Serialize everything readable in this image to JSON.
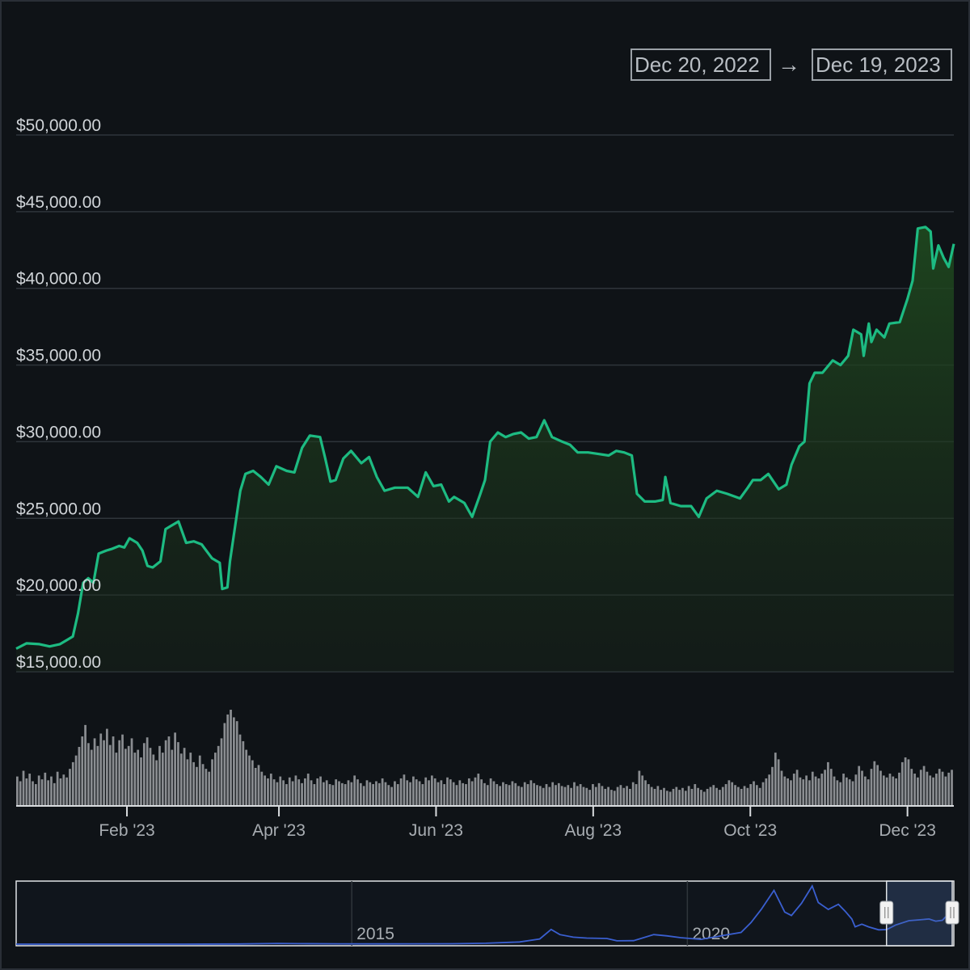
{
  "range_selector": {
    "start_date": "Dec 20, 2022",
    "arrow": "→",
    "end_date": "Dec 19, 2023"
  },
  "colors": {
    "background": "#0f1317",
    "price_line": "#1dbb82",
    "area_fill": "#1f3a1c",
    "volume_bar": "#8a8d91",
    "gridline": "#2f353b",
    "navigator_line": "#3a5fd0",
    "axis_label": "#d0d4d8"
  },
  "chart_data": [
    {
      "type": "area",
      "ylim": [
        15000,
        50000
      ],
      "y_ticks": [
        "$15,000.00",
        "$20,000.00",
        "$25,000.00",
        "$30,000.00",
        "$35,000.00",
        "$40,000.00",
        "$45,000.00",
        "$50,000.00"
      ],
      "y_tick_values": [
        15000,
        20000,
        25000,
        30000,
        35000,
        40000,
        45000,
        50000
      ],
      "x_ticks": [
        "Feb '23",
        "Apr '23",
        "Jun '23",
        "Aug '23",
        "Oct '23",
        "Dec '23"
      ],
      "x_tick_dates": [
        "2023-02-01",
        "2023-04-01",
        "2023-06-01",
        "2023-08-01",
        "2023-10-01",
        "2023-12-01"
      ],
      "x_range": [
        "2022-12-20",
        "2023-12-19"
      ],
      "grid": true,
      "series": [
        {
          "values": [
            [
              "2022-12-20",
              16500
            ],
            [
              "2022-12-24",
              16850
            ],
            [
              "2022-12-29",
              16800
            ],
            [
              "2023-01-02",
              16650
            ],
            [
              "2023-01-06",
              16800
            ],
            [
              "2023-01-09",
              17100
            ],
            [
              "2023-01-11",
              17300
            ],
            [
              "2023-01-13",
              18800
            ],
            [
              "2023-01-15",
              20800
            ],
            [
              "2023-01-17",
              21100
            ],
            [
              "2023-01-19",
              20800
            ],
            [
              "2023-01-21",
              22700
            ],
            [
              "2023-01-24",
              22900
            ],
            [
              "2023-01-26",
              23000
            ],
            [
              "2023-01-29",
              23200
            ],
            [
              "2023-01-31",
              23100
            ],
            [
              "2023-02-02",
              23700
            ],
            [
              "2023-02-05",
              23400
            ],
            [
              "2023-02-07",
              22900
            ],
            [
              "2023-02-09",
              21900
            ],
            [
              "2023-02-11",
              21800
            ],
            [
              "2023-02-14",
              22200
            ],
            [
              "2023-02-16",
              24300
            ],
            [
              "2023-02-18",
              24500
            ],
            [
              "2023-02-21",
              24800
            ],
            [
              "2023-02-24",
              23400
            ],
            [
              "2023-02-27",
              23500
            ],
            [
              "2023-03-02",
              23300
            ],
            [
              "2023-03-06",
              22400
            ],
            [
              "2023-03-09",
              22100
            ],
            [
              "2023-03-10",
              20400
            ],
            [
              "2023-03-12",
              20500
            ],
            [
              "2023-03-13",
              22200
            ],
            [
              "2023-03-15",
              24500
            ],
            [
              "2023-03-17",
              26800
            ],
            [
              "2023-03-19",
              27900
            ],
            [
              "2023-03-22",
              28100
            ],
            [
              "2023-03-25",
              27700
            ],
            [
              "2023-03-28",
              27200
            ],
            [
              "2023-03-31",
              28400
            ],
            [
              "2023-04-04",
              28100
            ],
            [
              "2023-04-07",
              28000
            ],
            [
              "2023-04-10",
              29600
            ],
            [
              "2023-04-13",
              30400
            ],
            [
              "2023-04-17",
              30300
            ],
            [
              "2023-04-19",
              28900
            ],
            [
              "2023-04-21",
              27400
            ],
            [
              "2023-04-23",
              27500
            ],
            [
              "2023-04-26",
              28900
            ],
            [
              "2023-04-29",
              29400
            ],
            [
              "2023-05-03",
              28600
            ],
            [
              "2023-05-06",
              29000
            ],
            [
              "2023-05-09",
              27700
            ],
            [
              "2023-05-12",
              26800
            ],
            [
              "2023-05-16",
              27000
            ],
            [
              "2023-05-21",
              27000
            ],
            [
              "2023-05-25",
              26400
            ],
            [
              "2023-05-28",
              28000
            ],
            [
              "2023-05-31",
              27100
            ],
            [
              "2023-06-03",
              27200
            ],
            [
              "2023-06-06",
              26100
            ],
            [
              "2023-06-08",
              26400
            ],
            [
              "2023-06-12",
              26000
            ],
            [
              "2023-06-15",
              25100
            ],
            [
              "2023-06-18",
              26500
            ],
            [
              "2023-06-20",
              27500
            ],
            [
              "2023-06-22",
              30000
            ],
            [
              "2023-06-25",
              30600
            ],
            [
              "2023-06-28",
              30300
            ],
            [
              "2023-07-01",
              30500
            ],
            [
              "2023-07-04",
              30600
            ],
            [
              "2023-07-07",
              30200
            ],
            [
              "2023-07-10",
              30300
            ],
            [
              "2023-07-13",
              31400
            ],
            [
              "2023-07-16",
              30300
            ],
            [
              "2023-07-20",
              30000
            ],
            [
              "2023-07-23",
              29800
            ],
            [
              "2023-07-26",
              29300
            ],
            [
              "2023-07-30",
              29300
            ],
            [
              "2023-08-03",
              29200
            ],
            [
              "2023-08-07",
              29100
            ],
            [
              "2023-08-10",
              29400
            ],
            [
              "2023-08-13",
              29300
            ],
            [
              "2023-08-16",
              29100
            ],
            [
              "2023-08-18",
              26600
            ],
            [
              "2023-08-21",
              26100
            ],
            [
              "2023-08-25",
              26100
            ],
            [
              "2023-08-28",
              26200
            ],
            [
              "2023-08-29",
              27700
            ],
            [
              "2023-08-31",
              26000
            ],
            [
              "2023-09-04",
              25800
            ],
            [
              "2023-09-08",
              25800
            ],
            [
              "2023-09-11",
              25100
            ],
            [
              "2023-09-14",
              26300
            ],
            [
              "2023-09-18",
              26800
            ],
            [
              "2023-09-22",
              26600
            ],
            [
              "2023-09-27",
              26300
            ],
            [
              "2023-09-30",
              27000
            ],
            [
              "2023-10-02",
              27500
            ],
            [
              "2023-10-05",
              27500
            ],
            [
              "2023-10-08",
              27900
            ],
            [
              "2023-10-12",
              26900
            ],
            [
              "2023-10-15",
              27200
            ],
            [
              "2023-10-17",
              28500
            ],
            [
              "2023-10-20",
              29700
            ],
            [
              "2023-10-22",
              30000
            ],
            [
              "2023-10-24",
              33800
            ],
            [
              "2023-10-26",
              34500
            ],
            [
              "2023-10-29",
              34500
            ],
            [
              "2023-11-02",
              35300
            ],
            [
              "2023-11-05",
              35000
            ],
            [
              "2023-11-08",
              35600
            ],
            [
              "2023-11-10",
              37300
            ],
            [
              "2023-11-13",
              37000
            ],
            [
              "2023-11-14",
              35600
            ],
            [
              "2023-11-16",
              37700
            ],
            [
              "2023-11-17",
              36500
            ],
            [
              "2023-11-19",
              37300
            ],
            [
              "2023-11-22",
              36800
            ],
            [
              "2023-11-24",
              37700
            ],
            [
              "2023-11-28",
              37800
            ],
            [
              "2023-12-01",
              39300
            ],
            [
              "2023-12-03",
              40500
            ],
            [
              "2023-12-05",
              43900
            ],
            [
              "2023-12-08",
              44000
            ],
            [
              "2023-12-10",
              43700
            ],
            [
              "2023-12-11",
              41300
            ],
            [
              "2023-12-13",
              42800
            ],
            [
              "2023-12-15",
              42000
            ],
            [
              "2023-12-17",
              41400
            ],
            [
              "2023-12-19",
              42900
            ]
          ]
        }
      ]
    },
    {
      "type": "bar",
      "note_series": "volume",
      "x_range": [
        "2022-12-20",
        "2023-12-19"
      ],
      "values": [
        0.3,
        0.25,
        0.36,
        0.28,
        0.33,
        0.25,
        0.22,
        0.31,
        0.27,
        0.34,
        0.26,
        0.3,
        0.23,
        0.35,
        0.28,
        0.32,
        0.29,
        0.38,
        0.45,
        0.52,
        0.61,
        0.72,
        0.84,
        0.65,
        0.58,
        0.7,
        0.62,
        0.75,
        0.68,
        0.8,
        0.63,
        0.72,
        0.55,
        0.68,
        0.74,
        0.59,
        0.62,
        0.7,
        0.55,
        0.58,
        0.5,
        0.65,
        0.71,
        0.6,
        0.53,
        0.47,
        0.62,
        0.55,
        0.68,
        0.72,
        0.58,
        0.76,
        0.66,
        0.54,
        0.6,
        0.48,
        0.55,
        0.45,
        0.4,
        0.52,
        0.43,
        0.38,
        0.35,
        0.48,
        0.55,
        0.62,
        0.7,
        0.86,
        0.95,
        1.0,
        0.92,
        0.88,
        0.74,
        0.67,
        0.58,
        0.52,
        0.47,
        0.39,
        0.42,
        0.35,
        0.31,
        0.28,
        0.33,
        0.27,
        0.24,
        0.3,
        0.26,
        0.22,
        0.29,
        0.25,
        0.31,
        0.27,
        0.23,
        0.28,
        0.33,
        0.26,
        0.22,
        0.28,
        0.3,
        0.24,
        0.26,
        0.22,
        0.21,
        0.27,
        0.25,
        0.23,
        0.22,
        0.26,
        0.24,
        0.31,
        0.27,
        0.23,
        0.2,
        0.26,
        0.24,
        0.22,
        0.25,
        0.23,
        0.28,
        0.24,
        0.21,
        0.19,
        0.25,
        0.22,
        0.28,
        0.32,
        0.26,
        0.24,
        0.3,
        0.27,
        0.25,
        0.22,
        0.29,
        0.26,
        0.31,
        0.28,
        0.24,
        0.26,
        0.22,
        0.29,
        0.27,
        0.24,
        0.21,
        0.26,
        0.23,
        0.22,
        0.28,
        0.25,
        0.29,
        0.33,
        0.27,
        0.23,
        0.21,
        0.28,
        0.25,
        0.22,
        0.2,
        0.24,
        0.22,
        0.21,
        0.25,
        0.23,
        0.2,
        0.19,
        0.24,
        0.22,
        0.26,
        0.23,
        0.21,
        0.2,
        0.18,
        0.22,
        0.19,
        0.24,
        0.21,
        0.23,
        0.2,
        0.19,
        0.21,
        0.18,
        0.24,
        0.2,
        0.22,
        0.19,
        0.18,
        0.16,
        0.22,
        0.19,
        0.23,
        0.2,
        0.17,
        0.19,
        0.16,
        0.15,
        0.19,
        0.21,
        0.18,
        0.2,
        0.17,
        0.24,
        0.22,
        0.36,
        0.31,
        0.26,
        0.22,
        0.19,
        0.17,
        0.2,
        0.16,
        0.18,
        0.15,
        0.14,
        0.17,
        0.19,
        0.16,
        0.18,
        0.15,
        0.2,
        0.17,
        0.22,
        0.18,
        0.16,
        0.14,
        0.17,
        0.19,
        0.21,
        0.18,
        0.16,
        0.19,
        0.22,
        0.26,
        0.24,
        0.21,
        0.19,
        0.17,
        0.2,
        0.18,
        0.22,
        0.25,
        0.21,
        0.18,
        0.24,
        0.28,
        0.32,
        0.4,
        0.55,
        0.48,
        0.36,
        0.3,
        0.28,
        0.26,
        0.33,
        0.37,
        0.29,
        0.27,
        0.31,
        0.26,
        0.35,
        0.3,
        0.28,
        0.33,
        0.37,
        0.45,
        0.38,
        0.3,
        0.26,
        0.24,
        0.33,
        0.29,
        0.27,
        0.25,
        0.32,
        0.41,
        0.36,
        0.3,
        0.27,
        0.38,
        0.46,
        0.42,
        0.36,
        0.31,
        0.29,
        0.33,
        0.3,
        0.28,
        0.34,
        0.45,
        0.5,
        0.48,
        0.38,
        0.33,
        0.29,
        0.37,
        0.41,
        0.35,
        0.31,
        0.29,
        0.33,
        0.38,
        0.35,
        0.3,
        0.34,
        0.37
      ]
    },
    {
      "type": "line",
      "note_series": "navigator",
      "x_ticks": [
        "2015",
        "2020"
      ],
      "x_tick_years": [
        2015,
        2020
      ],
      "x_range": [
        2010,
        2023.97
      ],
      "ylim": [
        0,
        69000
      ],
      "selected_range": [
        "2022-12-20",
        "2023-12-19"
      ],
      "values": [
        [
          2010.0,
          0
        ],
        [
          2011.5,
          10
        ],
        [
          2012.5,
          10
        ],
        [
          2013.3,
          200
        ],
        [
          2013.9,
          800
        ],
        [
          2014.2,
          600
        ],
        [
          2014.8,
          350
        ],
        [
          2015.5,
          250
        ],
        [
          2016.5,
          500
        ],
        [
          2017.0,
          1000
        ],
        [
          2017.5,
          2500
        ],
        [
          2017.8,
          6000
        ],
        [
          2017.97,
          17000
        ],
        [
          2018.1,
          11000
        ],
        [
          2018.3,
          8000
        ],
        [
          2018.5,
          7000
        ],
        [
          2018.8,
          6500
        ],
        [
          2018.95,
          3800
        ],
        [
          2019.2,
          4000
        ],
        [
          2019.5,
          11000
        ],
        [
          2019.7,
          9500
        ],
        [
          2019.9,
          7500
        ],
        [
          2020.2,
          5500
        ],
        [
          2020.5,
          9500
        ],
        [
          2020.8,
          13500
        ],
        [
          2020.95,
          25000
        ],
        [
          2021.1,
          40000
        ],
        [
          2021.29,
          62000
        ],
        [
          2021.45,
          37000
        ],
        [
          2021.55,
          33000
        ],
        [
          2021.7,
          47000
        ],
        [
          2021.86,
          67000
        ],
        [
          2021.95,
          48000
        ],
        [
          2022.1,
          40000
        ],
        [
          2022.25,
          46000
        ],
        [
          2022.35,
          38000
        ],
        [
          2022.45,
          29000
        ],
        [
          2022.5,
          20000
        ],
        [
          2022.6,
          23000
        ],
        [
          2022.7,
          20000
        ],
        [
          2022.85,
          16500
        ],
        [
          2022.97,
          16800
        ],
        [
          2023.1,
          22000
        ],
        [
          2023.3,
          27000
        ],
        [
          2023.45,
          28000
        ],
        [
          2023.6,
          29000
        ],
        [
          2023.7,
          26500
        ],
        [
          2023.8,
          27500
        ],
        [
          2023.9,
          36000
        ],
        [
          2023.97,
          42900
        ]
      ]
    }
  ]
}
